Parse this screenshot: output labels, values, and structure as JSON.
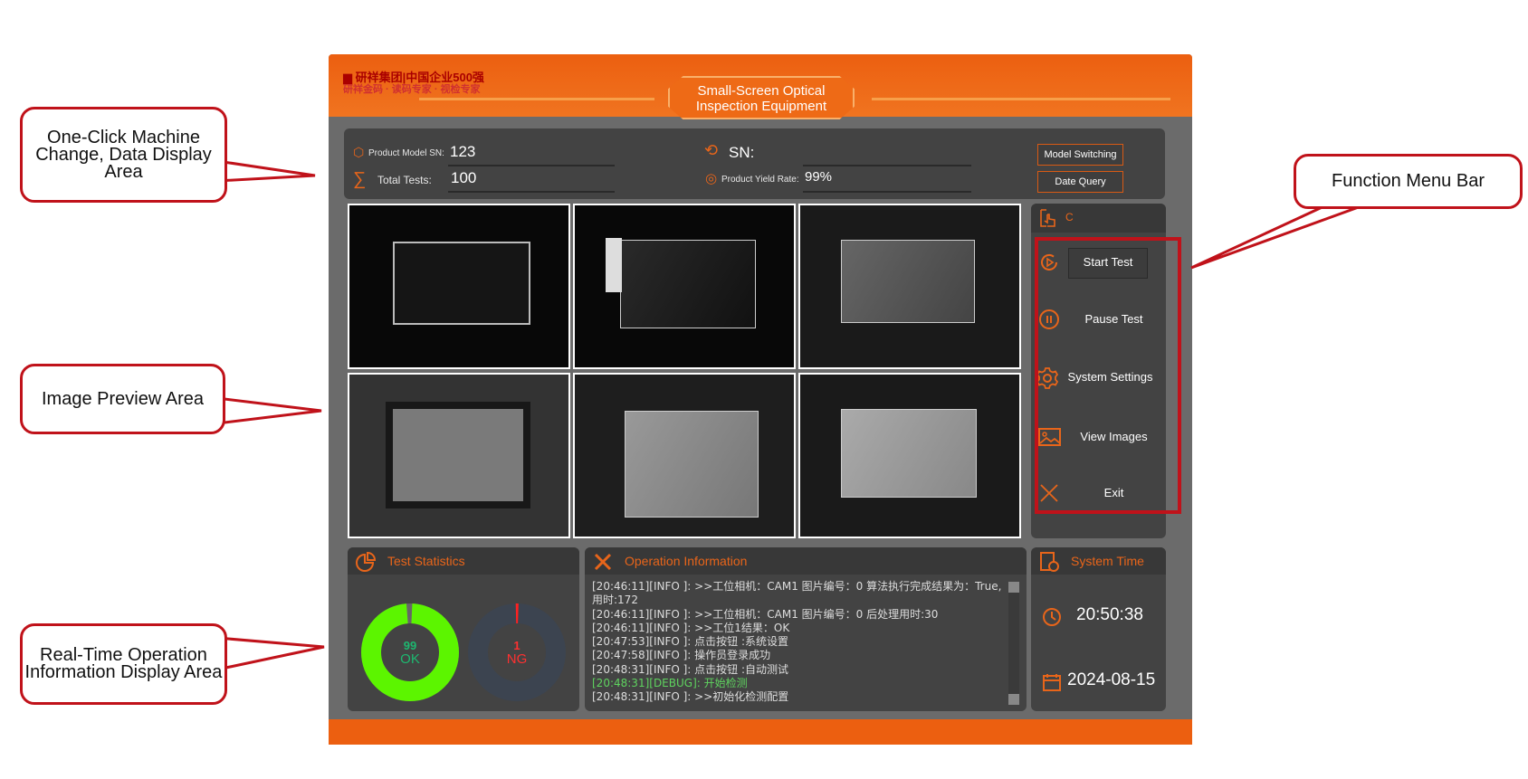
{
  "header": {
    "title_line1": "Small-Screen Optical",
    "title_line2": "Inspection Equipment",
    "logo_text": "研祥集团 中国企业500强 研祥金码"
  },
  "info": {
    "product_model_label": "Product Model SN:",
    "product_model_value": "123",
    "total_tests_label": "Total Tests:",
    "total_tests_value": "100",
    "sn_label": "SN:",
    "sn_value": "",
    "yield_label": "Product Yield Rate:",
    "yield_value": "99%",
    "model_switching_btn": "Model Switching",
    "date_query_btn": "Date Query"
  },
  "menu": {
    "header_text": "C",
    "items": [
      {
        "label": "Start Test",
        "icon": "play-circle-icon"
      },
      {
        "label": "Pause Test",
        "icon": "pause-circle-icon"
      },
      {
        "label": "System Settings",
        "icon": "gear-icon"
      },
      {
        "label": "View Images",
        "icon": "image-icon"
      },
      {
        "label": "Exit",
        "icon": "close-icon"
      }
    ]
  },
  "stats": {
    "title": "Test Statistics",
    "ok_count": "99",
    "ok_label": "OK",
    "ng_count": "1",
    "ng_label": "NG",
    "ok_color": "#5cf500",
    "ng_color": "#ff2020",
    "ok_fraction": 0.99,
    "ng_fraction": 0.01
  },
  "ops": {
    "title": "Operation Information",
    "log": [
      {
        "text": "[20:46:11][INFO ]: >>工位相机：CAM1 图片编号：0  算法执行完成结果为：True,用时:172",
        "level": "info"
      },
      {
        "text": "[20:46:11][INFO ]: >>工位相机：CAM1 图片编号：0 后处理用时:30",
        "level": "info"
      },
      {
        "text": "[20:46:11][INFO ]: >>工位1结果：OK",
        "level": "info"
      },
      {
        "text": "[20:47:53][INFO ]: 点击按钮 :系统设置",
        "level": "info"
      },
      {
        "text": "[20:47:58][INFO ]: 操作员登录成功",
        "level": "info"
      },
      {
        "text": "[20:48:31][INFO ]: 点击按钮 :自动测试",
        "level": "info"
      },
      {
        "text": "[20:48:31][DEBUG]: 开始检测",
        "level": "debug"
      },
      {
        "text": "[20:48:31][INFO ]: >>初始化检测配置",
        "level": "info"
      }
    ]
  },
  "time": {
    "title": "System Time",
    "clock": "20:50:38",
    "date": "2024-08-15"
  },
  "callouts": {
    "machine_change": "One-Click Machine Change, Data Display Area",
    "image_preview": "Image Preview Area",
    "realtime": "Real-Time Operation Information Display Area",
    "function_menu": "Function Menu Bar"
  },
  "colors": {
    "accent": "#ec5f10",
    "panel": "#434343",
    "callout": "#c0121a"
  }
}
